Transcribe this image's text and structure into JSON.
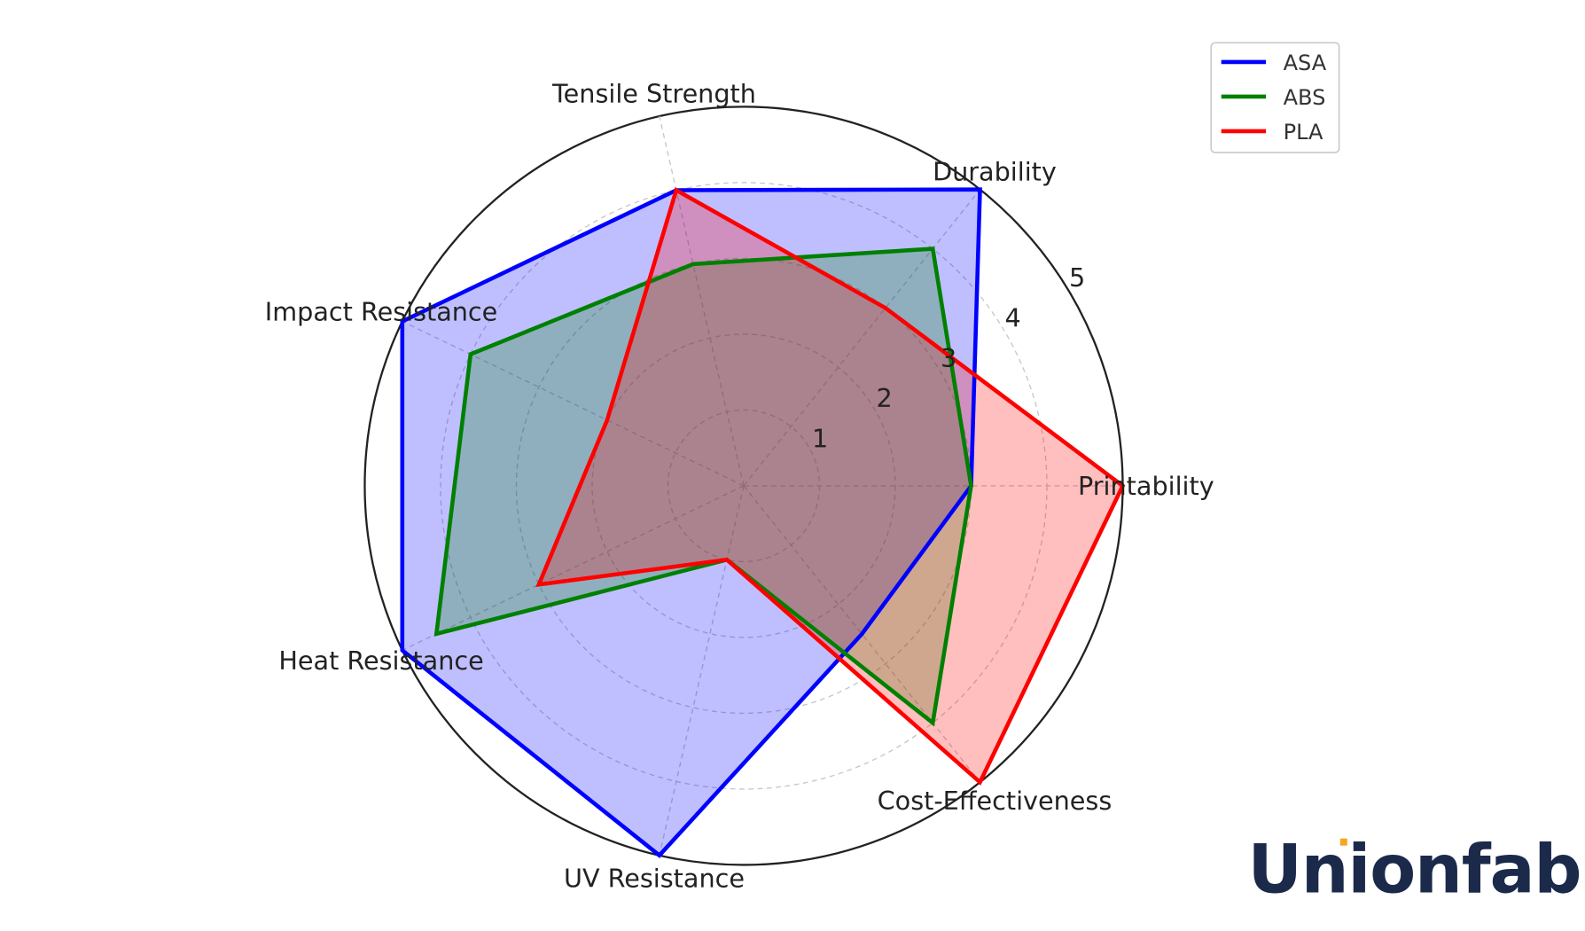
{
  "chart_data": {
    "type": "radar",
    "categories": [
      "Printability",
      "Durability",
      "Tensile Strength",
      "Impact Resistance",
      "Heat Resistance",
      "UV Resistance",
      "Cost-Effectiveness"
    ],
    "series": [
      {
        "name": "ASA",
        "color": "#0000ff",
        "values": [
          3,
          5,
          4,
          5,
          5,
          5,
          2.5
        ]
      },
      {
        "name": "ABS",
        "color": "#008000",
        "values": [
          3,
          4,
          3,
          4,
          4.5,
          1,
          4
        ]
      },
      {
        "name": "PLA",
        "color": "#ff0000",
        "values": [
          5,
          3,
          4,
          2,
          3,
          1,
          5
        ]
      }
    ],
    "rlim": [
      0,
      5
    ],
    "rticks": [
      1,
      2,
      3,
      4,
      5
    ],
    "rtick_labels": [
      "1",
      "2",
      "3",
      "4",
      "5"
    ],
    "grid": true,
    "fill_alpha": 0.25,
    "legend_position": "top-right"
  },
  "logo": {
    "text": "Unionfab",
    "accent": "#f5a623",
    "color": "#1b2a4a"
  }
}
